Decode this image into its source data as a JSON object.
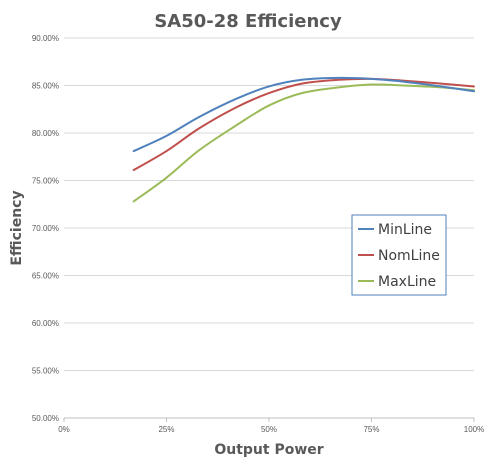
{
  "chart_data": {
    "type": "line",
    "title": "SA50-28 Efficiency",
    "xlabel": "Output Power",
    "ylabel": "Efficiency",
    "xlim": [
      0,
      1
    ],
    "ylim": [
      0.5,
      0.9
    ],
    "grid": "horizontal",
    "legend_position": "right-middle",
    "x_ticks": [
      0,
      0.25,
      0.5,
      0.75,
      1.0
    ],
    "x_tick_labels": [
      "0%",
      "25%",
      "50%",
      "75%",
      "100%"
    ],
    "y_ticks": [
      0.5,
      0.55,
      0.6,
      0.65,
      0.7,
      0.75,
      0.8,
      0.85,
      0.9
    ],
    "y_tick_labels": [
      "50.00%",
      "55.00%",
      "60.00%",
      "65.00%",
      "70.00%",
      "75.00%",
      "80.00%",
      "85.00%",
      "90.00%"
    ],
    "series": [
      {
        "name": "MinLine",
        "color": "#4f81bd",
        "points": [
          [
            0.17,
            0.781
          ],
          [
            0.25,
            0.797
          ],
          [
            0.33,
            0.817
          ],
          [
            0.42,
            0.836
          ],
          [
            0.5,
            0.849
          ],
          [
            0.58,
            0.856
          ],
          [
            0.67,
            0.858
          ],
          [
            0.75,
            0.857
          ],
          [
            0.83,
            0.854
          ],
          [
            0.92,
            0.849
          ],
          [
            1.0,
            0.844
          ]
        ]
      },
      {
        "name": "NomLine",
        "color": "#c0504d",
        "points": [
          [
            0.17,
            0.761
          ],
          [
            0.25,
            0.781
          ],
          [
            0.33,
            0.805
          ],
          [
            0.42,
            0.827
          ],
          [
            0.5,
            0.842
          ],
          [
            0.58,
            0.852
          ],
          [
            0.67,
            0.856
          ],
          [
            0.75,
            0.857
          ],
          [
            0.83,
            0.855
          ],
          [
            0.92,
            0.852
          ],
          [
            1.0,
            0.849
          ]
        ]
      },
      {
        "name": "MaxLine",
        "color": "#9bbb59",
        "points": [
          [
            0.17,
            0.728
          ],
          [
            0.25,
            0.753
          ],
          [
            0.33,
            0.782
          ],
          [
            0.42,
            0.808
          ],
          [
            0.5,
            0.829
          ],
          [
            0.58,
            0.842
          ],
          [
            0.67,
            0.848
          ],
          [
            0.75,
            0.851
          ],
          [
            0.83,
            0.85
          ],
          [
            0.92,
            0.848
          ],
          [
            1.0,
            0.845
          ]
        ]
      }
    ]
  }
}
